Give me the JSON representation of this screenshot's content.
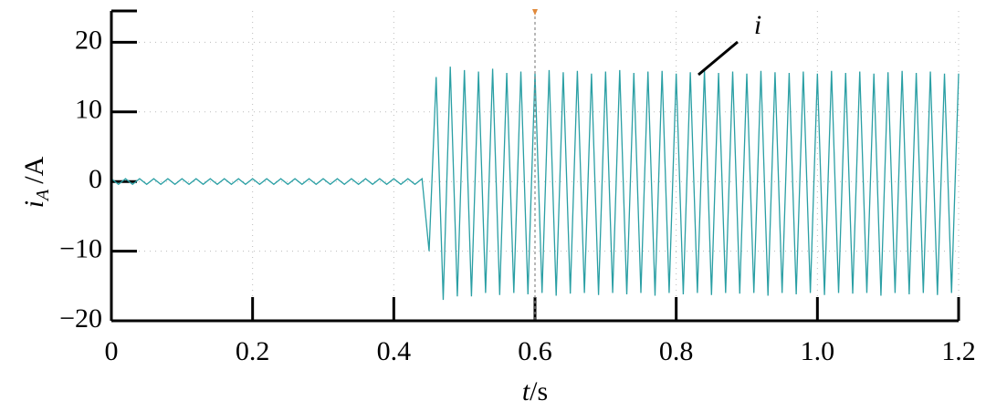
{
  "chart_data": {
    "type": "line",
    "ylabel": {
      "var": "i",
      "sub": "A",
      "unit": "/A"
    },
    "xlabel": {
      "var": "t",
      "unit": "/s"
    },
    "annotation": "i",
    "x": [
      0,
      0.01,
      0.02,
      0.03,
      0.04,
      0.05,
      0.06,
      0.07,
      0.08,
      0.09,
      0.1,
      0.11,
      0.12,
      0.13,
      0.14,
      0.15,
      0.16,
      0.17,
      0.18,
      0.19,
      0.2,
      0.21,
      0.22,
      0.23,
      0.24,
      0.25,
      0.26,
      0.27,
      0.28,
      0.29,
      0.3,
      0.31,
      0.32,
      0.33,
      0.34,
      0.35,
      0.36,
      0.37,
      0.38,
      0.39,
      0.4,
      0.41,
      0.42,
      0.43,
      0.44,
      0.45,
      0.46,
      0.47,
      0.48,
      0.49,
      0.5,
      0.51,
      0.52,
      0.53,
      0.54,
      0.55,
      0.56,
      0.57,
      0.58,
      0.59,
      0.6,
      0.61,
      0.62,
      0.63,
      0.64,
      0.65,
      0.66,
      0.67,
      0.68,
      0.69,
      0.7,
      0.71,
      0.72,
      0.73,
      0.74,
      0.75,
      0.76,
      0.77,
      0.78,
      0.79,
      0.8,
      0.81,
      0.82,
      0.83,
      0.84,
      0.85,
      0.86,
      0.87,
      0.88,
      0.89,
      0.9,
      0.91,
      0.92,
      0.93,
      0.94,
      0.95,
      0.96,
      0.97,
      0.98,
      0.99,
      1,
      1.01,
      1.02,
      1.03,
      1.04,
      1.05,
      1.06,
      1.07,
      1.08,
      1.09,
      1.1,
      1.11,
      1.12,
      1.13,
      1.14,
      1.15,
      1.16,
      1.17,
      1.18,
      1.19,
      1.2
    ],
    "series": [
      {
        "name": "i",
        "color": "#2a9fa4",
        "values": [
          0.4,
          -0.4,
          0.4,
          -0.4,
          0.4,
          -0.4,
          0.4,
          -0.4,
          0.4,
          -0.4,
          0.4,
          -0.4,
          0.4,
          -0.4,
          0.4,
          -0.4,
          0.4,
          -0.4,
          0.4,
          -0.4,
          0.4,
          -0.4,
          0.4,
          -0.4,
          0.4,
          -0.4,
          0.4,
          -0.4,
          0.4,
          -0.4,
          0.4,
          -0.4,
          0.4,
          -0.4,
          0.4,
          -0.4,
          0.4,
          -0.4,
          0.4,
          -0.4,
          0.4,
          -0.4,
          0.4,
          -0.4,
          0.4,
          -10,
          15,
          -17,
          16.5,
          -16.5,
          16,
          -16.5,
          15.8,
          -16,
          16.2,
          -16.3,
          15.6,
          -16,
          15.8,
          -16.2,
          15.5,
          -16,
          16,
          -16.4,
          15.7,
          -16.1,
          15.9,
          -16,
          15.5,
          -16.3,
          15.8,
          -16,
          16,
          -16.2,
          15.6,
          -16,
          15.8,
          -16.4,
          15.9,
          -16,
          15.5,
          -16.2,
          15.7,
          -16,
          16,
          -16.3,
          15.6,
          -16,
          15.8,
          -16.1,
          15.5,
          -16,
          15.9,
          -16.4,
          15.7,
          -16,
          15.6,
          -16.2,
          15.8,
          -16,
          15.5,
          -16.3,
          15.9,
          -16,
          15.6,
          -16.1,
          15.8,
          -16,
          15.5,
          -16.4,
          15.7,
          -16,
          15.9,
          -16.2,
          15.6,
          -16,
          15.8,
          -16.3,
          15.5,
          -16,
          15.5
        ]
      }
    ],
    "cursor_x": 0.6,
    "xlim": [
      0,
      1.2
    ],
    "ylim": [
      -20,
      24.5
    ],
    "xticks": [
      0,
      0.2,
      0.4,
      0.6,
      0.8,
      {
        "value": 1,
        "label": "1.0"
      },
      1.2
    ],
    "yticks": [
      {
        "value": -20,
        "label": "−20"
      },
      {
        "value": -10,
        "label": "−10"
      },
      0,
      10,
      20
    ],
    "grid": true
  }
}
